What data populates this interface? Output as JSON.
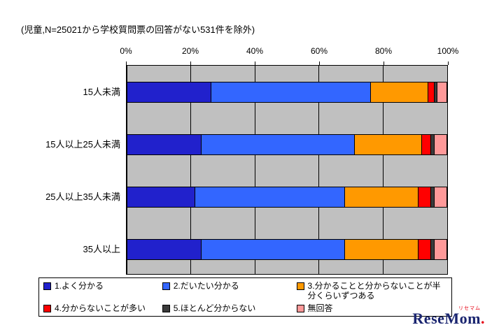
{
  "note": "(児童,N=25021から学校質問票の回答がない531件を除外)",
  "chart_data": {
    "type": "bar",
    "orientation": "horizontal",
    "stacked": true,
    "title": "",
    "xlabel": "",
    "ylabel": "",
    "xlim": [
      0,
      100
    ],
    "x_ticks": [
      "0%",
      "20%",
      "40%",
      "60%",
      "80%",
      "100%"
    ],
    "grid": true,
    "plot_background": "#C0C0C0",
    "legend_position": "bottom",
    "categories": [
      "15人未満",
      "15人以上25人未満",
      "25人以上35人未満",
      "35人以上"
    ],
    "series": [
      {
        "name": "1.よく分かる",
        "color": "#2121CC",
        "values": [
          26,
          23,
          21,
          23
        ]
      },
      {
        "name": "2.だいたい分かる",
        "color": "#3366FF",
        "values": [
          50,
          48,
          47,
          45
        ]
      },
      {
        "name": "3.分かることと分からないことが半分くらいずつある",
        "color": "#FF9900",
        "values": [
          18,
          21,
          23,
          23
        ]
      },
      {
        "name": "4.分からないことが多い",
        "color": "#FF0000",
        "values": [
          2,
          3,
          4,
          4
        ]
      },
      {
        "name": "5.ほとんど分からない",
        "color": "#3B3B3B",
        "values": [
          1,
          1,
          1,
          1
        ]
      },
      {
        "name": "無回答",
        "color": "#FF9999",
        "values": [
          3,
          4,
          4,
          4
        ]
      }
    ]
  },
  "logo": {
    "ruby": "リセマム",
    "text": "ReseMom",
    "dot": "."
  }
}
